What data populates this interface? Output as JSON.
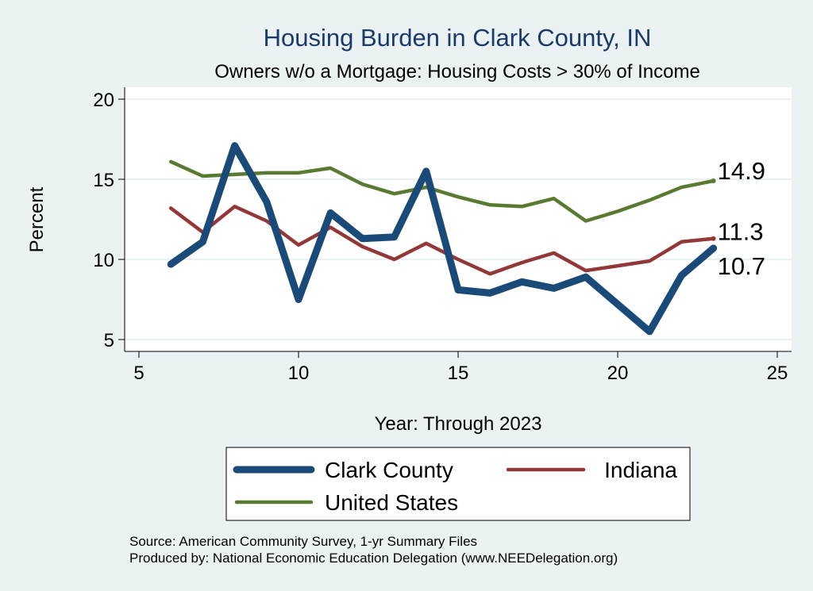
{
  "chart_data": {
    "type": "line",
    "title": "Housing Burden in Clark County, IN",
    "subtitle": "Owners w/o a Mortgage: Housing Costs > 30% of Income",
    "xlabel": "Year: Through 2023",
    "ylabel": "Percent",
    "xlim": [
      5,
      25
    ],
    "ylim": [
      5,
      20
    ],
    "xticks": [
      5,
      10,
      15,
      20,
      25
    ],
    "yticks": [
      5,
      10,
      15,
      20
    ],
    "grid": true,
    "legend": "bottom",
    "series": [
      {
        "name": "Clark County",
        "color": "#1a4a78",
        "x": [
          6,
          7,
          8,
          9,
          10,
          11,
          12,
          13,
          14,
          15,
          16,
          17,
          18,
          19,
          20,
          21,
          22,
          23
        ],
        "values": [
          9.7,
          11.1,
          17.1,
          13.6,
          7.5,
          12.9,
          11.3,
          11.4,
          15.5,
          8.1,
          7.9,
          8.6,
          8.2,
          8.9,
          7.2,
          5.5,
          9.0,
          10.7
        ],
        "end_label": "10.7"
      },
      {
        "name": "Indiana",
        "color": "#933838",
        "x": [
          6,
          7,
          8,
          9,
          10,
          11,
          12,
          13,
          14,
          15,
          16,
          17,
          18,
          19,
          20,
          21,
          22,
          23
        ],
        "values": [
          13.2,
          11.7,
          13.3,
          12.4,
          10.9,
          12.0,
          10.8,
          10.0,
          11.0,
          10.0,
          9.1,
          9.8,
          10.4,
          9.3,
          9.6,
          9.9,
          11.1,
          11.3
        ],
        "end_label": "11.3"
      },
      {
        "name": "United States",
        "color": "#5a7a32",
        "x": [
          6,
          7,
          8,
          9,
          10,
          11,
          12,
          13,
          14,
          15,
          16,
          17,
          18,
          19,
          20,
          21,
          22,
          23
        ],
        "values": [
          16.1,
          15.2,
          15.3,
          15.4,
          15.4,
          15.7,
          14.7,
          14.1,
          14.5,
          13.9,
          13.4,
          13.3,
          13.8,
          12.4,
          13.0,
          13.7,
          14.5,
          14.9
        ],
        "end_label": "14.9"
      }
    ],
    "source_lines": [
      "Source: American Community Survey, 1-yr Summary Files",
      "Produced by: National Economic Education Delegation (www.NEEDelegation.org)"
    ]
  }
}
